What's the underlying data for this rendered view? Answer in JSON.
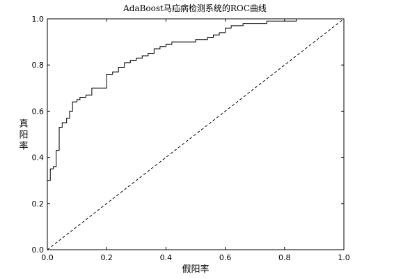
{
  "chart_data": {
    "type": "line",
    "title": "AdaBoost马疝病检测系统的ROC曲线",
    "xlabel": "假阳率",
    "ylabel": "真阳率",
    "xlim": [
      0.0,
      1.0
    ],
    "ylim": [
      0.0,
      1.0
    ],
    "xticks": [
      "0.0",
      "0.2",
      "0.4",
      "0.6",
      "0.8",
      "1.0"
    ],
    "yticks": [
      "0.0",
      "0.2",
      "0.4",
      "0.6",
      "0.8",
      "1.0"
    ],
    "grid": false,
    "line_color": "#000000",
    "series": [
      {
        "style": "solid-step",
        "x": [
          0.0,
          0.0,
          0.01,
          0.01,
          0.02,
          0.02,
          0.03,
          0.03,
          0.04,
          0.04,
          0.05,
          0.05,
          0.06,
          0.06,
          0.065,
          0.065,
          0.075,
          0.075,
          0.085,
          0.085,
          0.1,
          0.1,
          0.11,
          0.11,
          0.13,
          0.13,
          0.15,
          0.15,
          0.17,
          0.17,
          0.2,
          0.2,
          0.22,
          0.22,
          0.24,
          0.24,
          0.26,
          0.26,
          0.28,
          0.28,
          0.3,
          0.3,
          0.32,
          0.32,
          0.34,
          0.34,
          0.36,
          0.36,
          0.38,
          0.38,
          0.39,
          0.39,
          0.4,
          0.4,
          0.42,
          0.42,
          0.44,
          0.44,
          0.5,
          0.5,
          0.54,
          0.54,
          0.56,
          0.56,
          0.58,
          0.58,
          0.6,
          0.6,
          0.62,
          0.62,
          0.64,
          0.64,
          0.66,
          0.66,
          0.7,
          0.7,
          0.74,
          0.74,
          0.8,
          0.8,
          0.84,
          0.84,
          0.88,
          0.88,
          1.0
        ],
        "y": [
          0.0,
          0.3,
          0.3,
          0.35,
          0.35,
          0.36,
          0.36,
          0.43,
          0.43,
          0.53,
          0.53,
          0.55,
          0.55,
          0.55,
          0.55,
          0.57,
          0.57,
          0.6,
          0.6,
          0.64,
          0.64,
          0.65,
          0.65,
          0.66,
          0.66,
          0.67,
          0.67,
          0.7,
          0.7,
          0.7,
          0.7,
          0.76,
          0.76,
          0.77,
          0.77,
          0.79,
          0.79,
          0.81,
          0.81,
          0.82,
          0.82,
          0.83,
          0.83,
          0.84,
          0.84,
          0.85,
          0.85,
          0.87,
          0.87,
          0.88,
          0.88,
          0.88,
          0.88,
          0.89,
          0.89,
          0.9,
          0.9,
          0.9,
          0.9,
          0.91,
          0.91,
          0.92,
          0.92,
          0.93,
          0.93,
          0.94,
          0.94,
          0.96,
          0.96,
          0.97,
          0.97,
          0.97,
          0.97,
          0.98,
          0.98,
          0.98,
          0.98,
          0.99,
          0.99,
          0.99,
          0.99,
          1.0,
          1.0,
          1.0,
          1.0
        ]
      },
      {
        "style": "dashed",
        "x": [
          0.0,
          1.0
        ],
        "y": [
          0.0,
          1.0
        ]
      }
    ]
  }
}
